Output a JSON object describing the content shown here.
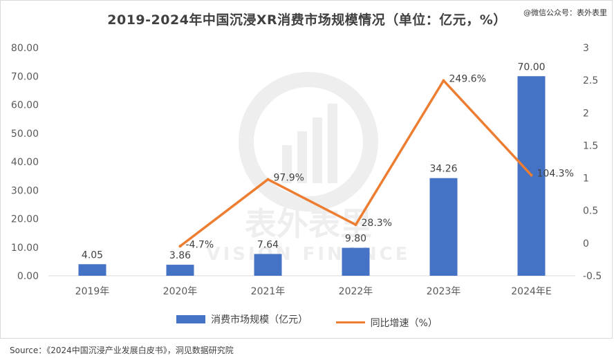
{
  "title": "2019-2024年中国沉浸XR消费市场规模情况（单位：亿元，%）",
  "corner_watermark": "@微信公众号：表外表里",
  "watermark": {
    "cn": "表外表里",
    "en": "VISION FINANCE"
  },
  "source": "Source：《2024中国沉浸产业发展白皮书》，洞见数据研究院",
  "legend": {
    "bar": "消费市场规模（亿元）",
    "line": "同比增速（%）"
  },
  "colors": {
    "bar": "#4472c4",
    "line": "#ed7d31"
  },
  "chart_data": {
    "type": "bar",
    "categories": [
      "2019年",
      "2020年",
      "2021年",
      "2022年",
      "2023年",
      "2024年E"
    ],
    "series": [
      {
        "name": "消费市场规模（亿元）",
        "type": "bar",
        "axis": "left",
        "values": [
          4.05,
          3.86,
          7.64,
          9.8,
          34.26,
          70.0
        ],
        "labels": [
          "4.05",
          "3.86",
          "7.64",
          "9.80",
          "34.26",
          "70.00"
        ]
      },
      {
        "name": "同比增速（%）",
        "type": "line",
        "axis": "right",
        "values": [
          null,
          -0.047,
          0.979,
          0.283,
          2.496,
          1.043
        ],
        "labels": [
          "",
          "-4.7%",
          "97.9%",
          "28.3%",
          "249.6%",
          "104.3%"
        ]
      }
    ],
    "y_left": {
      "min": 0,
      "max": 80,
      "ticks": [
        "0.00",
        "10.00",
        "20.00",
        "30.00",
        "40.00",
        "50.00",
        "60.00",
        "70.00",
        "80.00"
      ]
    },
    "y_right": {
      "min": -0.5,
      "max": 3,
      "ticks": [
        "-0.5",
        "0",
        "0.5",
        "1",
        "1.5",
        "2",
        "2.5",
        "3"
      ]
    },
    "grid": false,
    "legend_position": "bottom"
  }
}
